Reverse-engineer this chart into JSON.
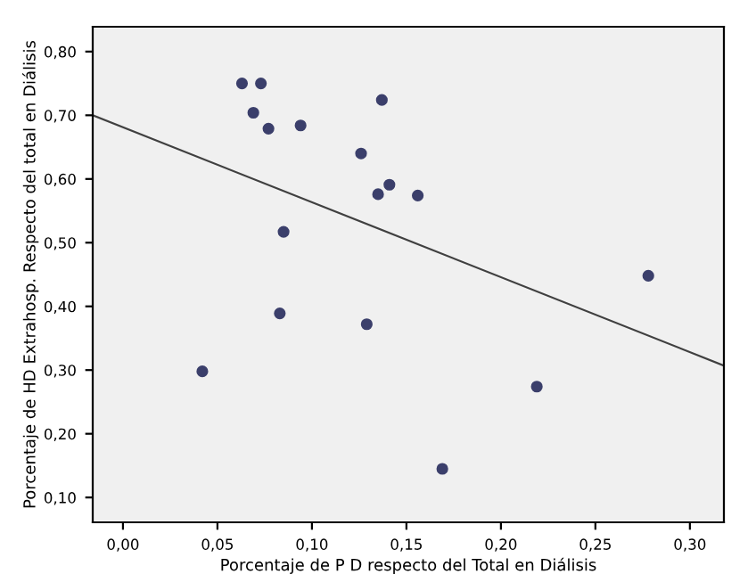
{
  "chart_data": {
    "type": "scatter",
    "xlabel": "Porcentaje de P D respecto del Total en Diálisis",
    "ylabel": "Porcentaje de HD Extrahosp. Respecto del total en Diálisis",
    "series": [
      {
        "marker": "circle",
        "color": "#3b3f6b",
        "x": [
          0.063,
          0.073,
          0.069,
          0.077,
          0.094,
          0.126,
          0.085,
          0.083,
          0.129,
          0.042,
          0.137,
          0.135,
          0.141,
          0.156,
          0.278,
          0.219,
          0.169
        ],
        "values": [
          0.75,
          0.75,
          0.704,
          0.679,
          0.684,
          0.64,
          0.517,
          0.389,
          0.372,
          0.298,
          0.724,
          0.576,
          0.591,
          0.574,
          0.448,
          0.274,
          0.145
        ]
      },
      {
        "type": "line",
        "color": "#404040",
        "x": [
          -0.016,
          0.318
        ],
        "values": [
          0.7,
          0.307
        ]
      }
    ],
    "xlim": [
      -0.016,
      0.318
    ],
    "ylim": [
      0.061,
      0.839
    ],
    "xticks": [
      {
        "value": 0,
        "label": "0,00"
      },
      {
        "value": 0.05,
        "label": "0,05"
      },
      {
        "value": 0.1,
        "label": "0,10"
      },
      {
        "value": 0.15,
        "label": "0,15"
      },
      {
        "value": 0.2,
        "label": "0,20"
      },
      {
        "value": 0.25,
        "label": "0,25"
      },
      {
        "value": 0.3,
        "label": "0,30"
      }
    ],
    "yticks": [
      {
        "value": 0.1,
        "label": "0,10"
      },
      {
        "value": 0.2,
        "label": "0,20"
      },
      {
        "value": 0.3,
        "label": "0,30"
      },
      {
        "value": 0.4,
        "label": "0,40"
      },
      {
        "value": 0.5,
        "label": "0,50"
      },
      {
        "value": 0.6,
        "label": "0,60"
      },
      {
        "value": 0.7,
        "label": "0,70"
      },
      {
        "value": 0.8,
        "label": "0,80"
      }
    ],
    "grid": false
  }
}
